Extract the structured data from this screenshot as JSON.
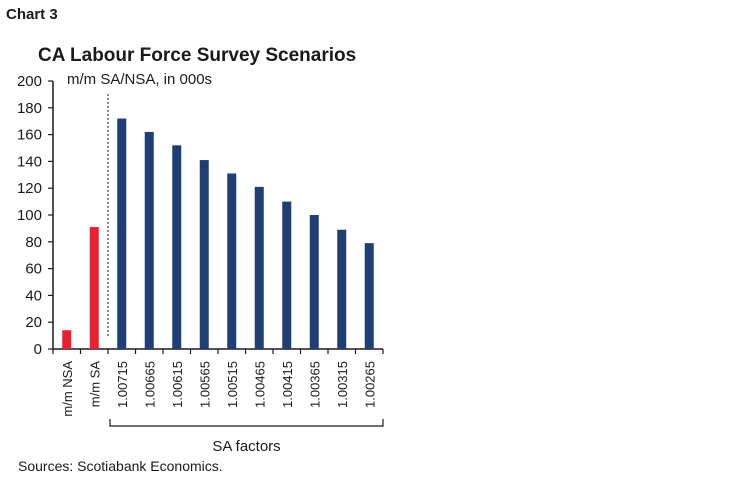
{
  "header": {
    "chart_number": "Chart 3",
    "title": "CA Labour Force Survey Scenarios"
  },
  "footer": {
    "sources": "Sources: Scotiabank Economics."
  },
  "colors": {
    "nsa_sa": "#e8202f",
    "factors": "#1f3f74",
    "axis": "#1a1a1a"
  },
  "chart_data": {
    "type": "bar",
    "title": "CA Labour Force Survey Scenarios",
    "subtitle": "m/m SA/NSA, in 000s",
    "ylim": [
      0,
      200
    ],
    "yticks": [
      0,
      20,
      40,
      60,
      80,
      100,
      120,
      140,
      160,
      180,
      200
    ],
    "categories": [
      "m/m NSA",
      "m/m SA",
      "1.00715",
      "1.00665",
      "1.00615",
      "1.00565",
      "1.00515",
      "1.00465",
      "1.00415",
      "1.00365",
      "1.00315",
      "1.00265"
    ],
    "values": [
      14,
      91,
      172,
      162,
      152,
      141,
      131,
      121,
      110,
      100,
      89,
      79
    ],
    "bar_colors": [
      "#e8202f",
      "#e8202f",
      "#1f3f74",
      "#1f3f74",
      "#1f3f74",
      "#1f3f74",
      "#1f3f74",
      "#1f3f74",
      "#1f3f74",
      "#1f3f74",
      "#1f3f74",
      "#1f3f74"
    ],
    "group_label": "SA factors",
    "grid": false,
    "divider_after": "m/m SA"
  }
}
